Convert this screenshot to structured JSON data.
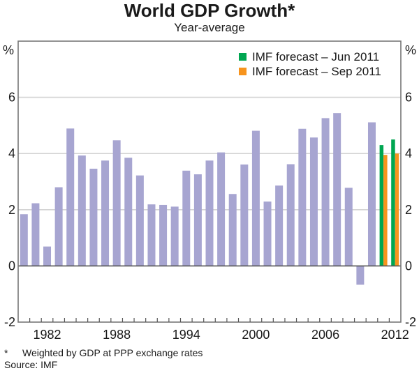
{
  "chart_data": {
    "type": "bar",
    "title": "World GDP Growth*",
    "subtitle": "Year-average",
    "xlabel": "",
    "ylabel_left": "%",
    "ylabel_right": "%",
    "ylim": [
      -2,
      8
    ],
    "yticks": [
      -2,
      0,
      2,
      4,
      6
    ],
    "ytick_labels": [
      "-2",
      "0",
      "2",
      "4",
      "6"
    ],
    "x_range": [
      1980,
      2012
    ],
    "xtick_labels": [
      "1982",
      "1988",
      "1994",
      "2000",
      "2006",
      "2012"
    ],
    "xtick_label_years": [
      1982,
      1988,
      1994,
      2000,
      2006,
      2012
    ],
    "grid": true,
    "legend_position": "top-right",
    "series": [
      {
        "name": "World GDP growth",
        "color": "#a7a5d1",
        "in_legend": false,
        "x": [
          1980,
          1981,
          1982,
          1983,
          1984,
          1985,
          1986,
          1987,
          1988,
          1989,
          1990,
          1991,
          1992,
          1993,
          1994,
          1995,
          1996,
          1997,
          1998,
          1999,
          2000,
          2001,
          2002,
          2003,
          2004,
          2005,
          2006,
          2007,
          2008,
          2009,
          2010
        ],
        "values": [
          1.84,
          2.23,
          0.69,
          2.8,
          4.89,
          3.93,
          3.46,
          3.75,
          4.47,
          3.85,
          3.22,
          2.19,
          2.17,
          2.11,
          3.39,
          3.26,
          3.75,
          4.04,
          2.56,
          3.61,
          4.81,
          2.29,
          2.86,
          3.62,
          4.88,
          4.57,
          5.26,
          5.44,
          2.78,
          -0.67,
          5.11
        ]
      },
      {
        "name": "IMF forecast – Jun 2011",
        "color": "#00a651",
        "in_legend": true,
        "x": [
          2011,
          2012
        ],
        "values": [
          4.3,
          4.5
        ]
      },
      {
        "name": "IMF forecast – Sep 2011",
        "color": "#f7941d",
        "in_legend": true,
        "x": [
          2011,
          2012
        ],
        "values": [
          3.95,
          4.0
        ]
      }
    ]
  },
  "footnotes": {
    "star": "*",
    "note": "Weighted by GDP at PPP exchange rates",
    "source": "Source: IMF"
  }
}
